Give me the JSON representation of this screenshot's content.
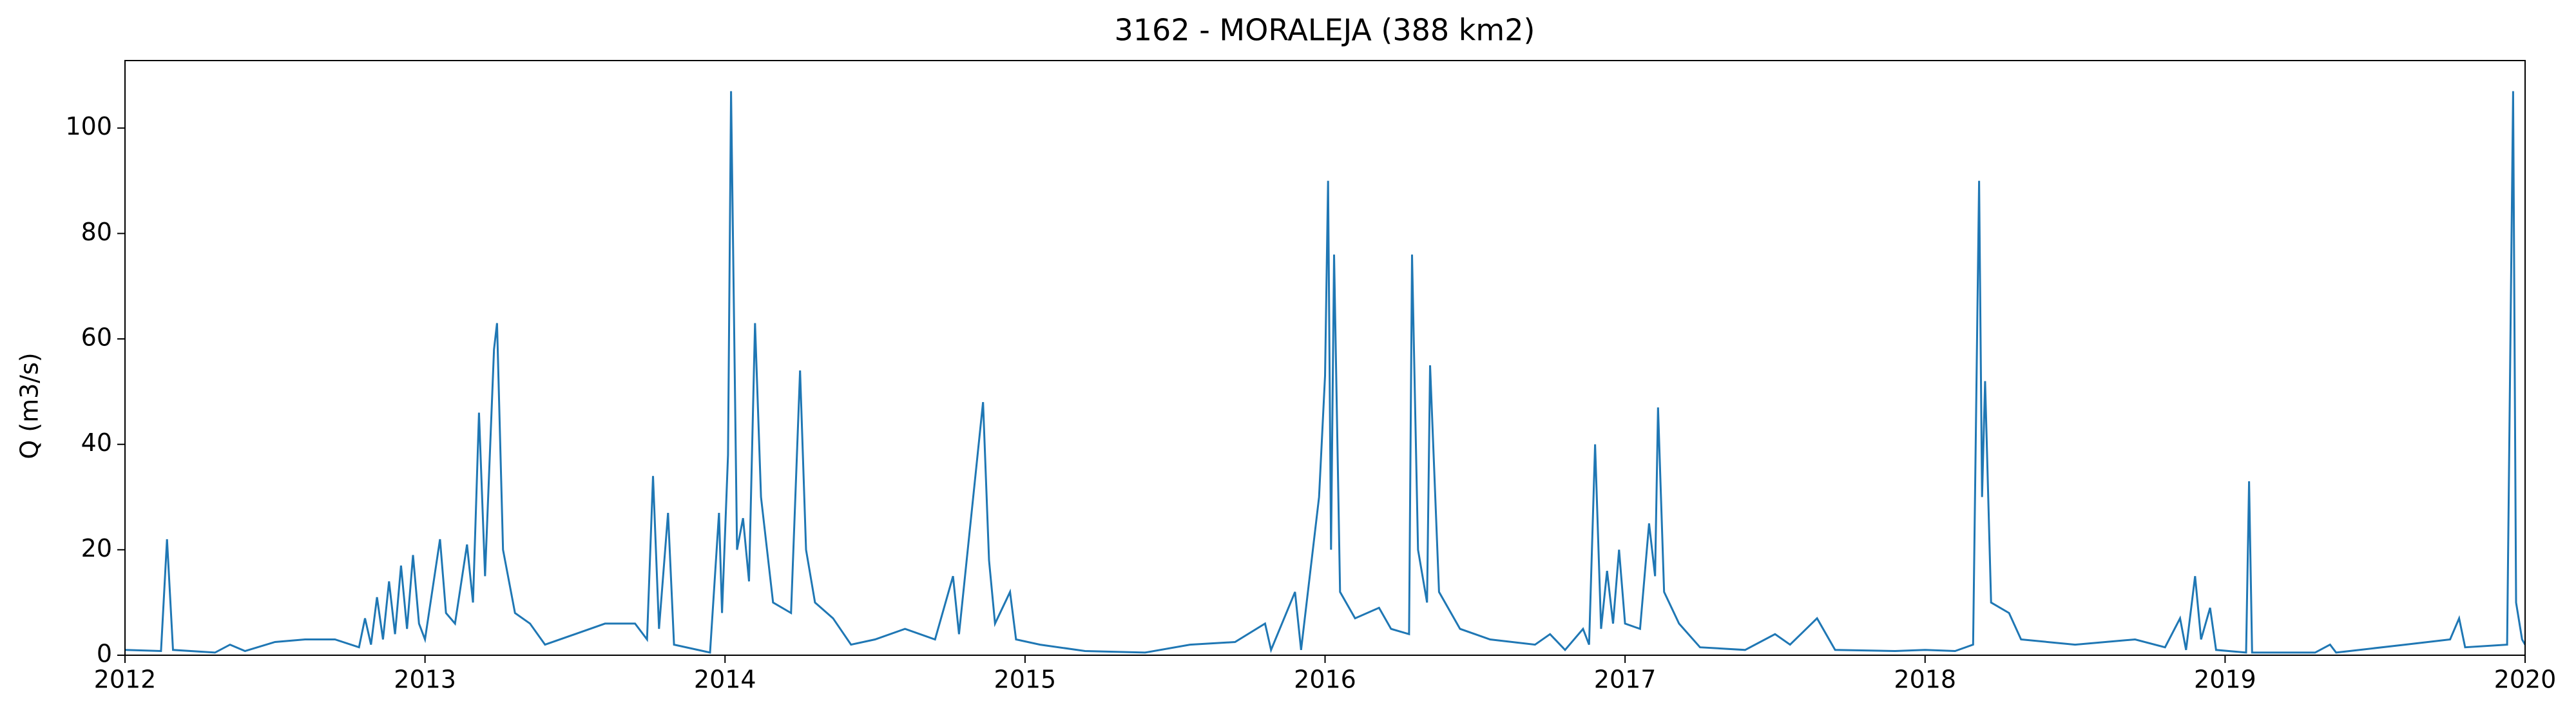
{
  "chart_data": {
    "type": "line",
    "title": "3162 - MORALEJA (388 km2)",
    "y_label": "Q (m3/s)",
    "color": "#1f77b4",
    "x": [
      2012.0,
      2012.12,
      2012.14,
      2012.16,
      2012.3,
      2012.35,
      2012.4,
      2012.5,
      2012.6,
      2012.7,
      2012.78,
      2012.8,
      2012.82,
      2012.84,
      2012.86,
      2012.88,
      2012.9,
      2012.92,
      2012.94,
      2012.96,
      2012.98,
      2013.0,
      2013.05,
      2013.07,
      2013.1,
      2013.14,
      2013.16,
      2013.18,
      2013.2,
      2013.23,
      2013.24,
      2013.26,
      2013.3,
      2013.35,
      2013.4,
      2013.5,
      2013.6,
      2013.7,
      2013.74,
      2013.76,
      2013.78,
      2013.81,
      2013.83,
      2013.95,
      2013.98,
      2013.99,
      2014.01,
      2014.02,
      2014.04,
      2014.06,
      2014.08,
      2014.1,
      2014.12,
      2014.16,
      2014.22,
      2014.25,
      2014.27,
      2014.3,
      2014.36,
      2014.42,
      2014.5,
      2014.6,
      2014.7,
      2014.76,
      2014.78,
      2014.86,
      2014.88,
      2014.9,
      2014.95,
      2014.97,
      2015.05,
      2015.2,
      2015.4,
      2015.55,
      2015.7,
      2015.8,
      2015.82,
      2015.9,
      2015.92,
      2015.98,
      2016.0,
      2016.01,
      2016.02,
      2016.03,
      2016.05,
      2016.1,
      2016.18,
      2016.22,
      2016.28,
      2016.29,
      2016.31,
      2016.34,
      2016.35,
      2016.38,
      2016.45,
      2016.55,
      2016.7,
      2016.75,
      2016.8,
      2016.86,
      2016.88,
      2016.9,
      2016.92,
      2016.94,
      2016.96,
      2016.98,
      2017.0,
      2017.05,
      2017.08,
      2017.1,
      2017.11,
      2017.13,
      2017.18,
      2017.25,
      2017.4,
      2017.5,
      2017.55,
      2017.64,
      2017.7,
      2017.9,
      2018.0,
      2018.1,
      2018.16,
      2018.18,
      2018.19,
      2018.2,
      2018.22,
      2018.28,
      2018.32,
      2018.5,
      2018.7,
      2018.8,
      2018.85,
      2018.87,
      2018.9,
      2018.92,
      2018.95,
      2018.97,
      2019.07,
      2019.08,
      2019.09,
      2019.3,
      2019.35,
      2019.37,
      2019.6,
      2019.75,
      2019.78,
      2019.8,
      2019.94,
      2019.96,
      2019.97,
      2019.99,
      2020.0
    ],
    "values": [
      1,
      0.8,
      22,
      1,
      0.5,
      2,
      0.8,
      2.5,
      3,
      3,
      1.5,
      7,
      2,
      11,
      3,
      14,
      4,
      17,
      5,
      19,
      6,
      3,
      22,
      8,
      6,
      21,
      10,
      46,
      15,
      58,
      63,
      20,
      8,
      6,
      2,
      4,
      6,
      6,
      3,
      34,
      5,
      27,
      2,
      0.5,
      27,
      8,
      38,
      107,
      20,
      26,
      14,
      63,
      30,
      10,
      8,
      54,
      20,
      10,
      7,
      2,
      3,
      5,
      3,
      15,
      4,
      48,
      18,
      6,
      12,
      3,
      2,
      0.8,
      0.5,
      2,
      2.5,
      6,
      1,
      12,
      1,
      30,
      53,
      90,
      20,
      76,
      12,
      7,
      9,
      5,
      4,
      76,
      20,
      10,
      55,
      12,
      5,
      3,
      2,
      4,
      1,
      5,
      2,
      40,
      5,
      16,
      6,
      20,
      6,
      5,
      25,
      15,
      47,
      12,
      6,
      1.5,
      1,
      4,
      2,
      7,
      1,
      0.8,
      1,
      0.8,
      2,
      90,
      30,
      52,
      10,
      8,
      3,
      2,
      3,
      1.5,
      7,
      1,
      15,
      3,
      9,
      1,
      0.5,
      33,
      0.5,
      0.5,
      2,
      0.5,
      2,
      3,
      7,
      1.5,
      2,
      107,
      10,
      3,
      2
    ],
    "xlim": [
      2012,
      2020
    ],
    "xticks": [
      2012,
      2013,
      2014,
      2015,
      2016,
      2017,
      2018,
      2019,
      2020
    ],
    "ylim": [
      0,
      112.8
    ],
    "yticks": [
      0,
      20,
      40,
      60,
      80,
      100
    ]
  }
}
